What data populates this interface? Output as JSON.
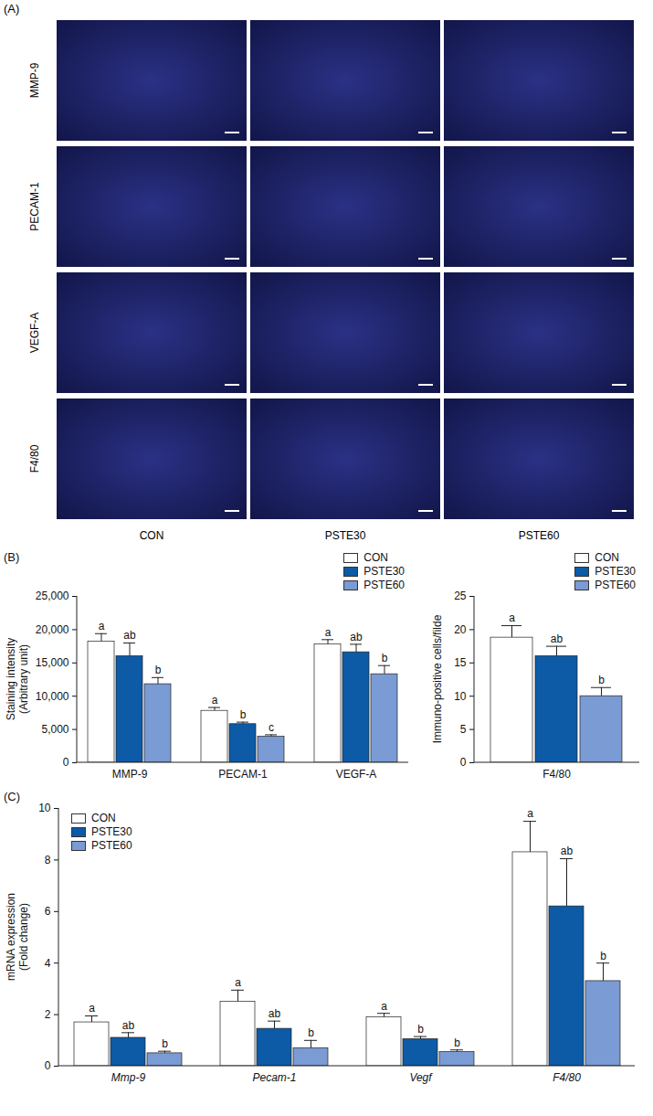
{
  "images": {
    "label": "(A)",
    "rows": [
      "MMP-9",
      "PECAM-1",
      "VEGF-A",
      "F4/80"
    ],
    "columns": [
      "CON",
      "PSTE30",
      "PSTE60"
    ]
  },
  "chart_data": [
    {
      "type": "bar",
      "panel": "(B)",
      "y_label": "Staining intensity\n(Arbitrary unit)",
      "categories": [
        "MMP-9",
        "PECAM-1",
        "VEGF-A"
      ],
      "series": [
        {
          "name": "CON",
          "color": "#ffffff",
          "values": [
            18200,
            7800,
            17800
          ],
          "errors": [
            1200,
            500,
            700
          ],
          "letters": [
            "a",
            "a",
            "a"
          ]
        },
        {
          "name": "PSTE30",
          "color": "#0d5aa7",
          "values": [
            16000,
            5800,
            16600
          ],
          "errors": [
            2000,
            300,
            1200
          ],
          "letters": [
            "ab",
            "b",
            "ab"
          ]
        },
        {
          "name": "PSTE60",
          "color": "#7a9bd3",
          "values": [
            11800,
            3900,
            13300
          ],
          "errors": [
            1000,
            300,
            1300
          ],
          "letters": [
            "b",
            "c",
            "b"
          ]
        }
      ],
      "ylim": [
        0,
        25000
      ],
      "yticks": [
        0,
        {
          "value": 5000,
          "label": "5,000"
        },
        {
          "value": 10000,
          "label": "10,000"
        },
        {
          "value": 15000,
          "label": "15,000"
        },
        {
          "value": 20000,
          "label": "20,000"
        },
        {
          "value": 25000,
          "label": "25,000"
        }
      ],
      "legend": "top-right"
    },
    {
      "type": "bar",
      "y_label": "Immuno-positive cells/filde",
      "categories": [
        "F4/80"
      ],
      "series": [
        {
          "name": "CON",
          "color": "#ffffff",
          "values": [
            18.8
          ],
          "errors": [
            1.8
          ],
          "letters": [
            "a"
          ]
        },
        {
          "name": "PSTE30",
          "color": "#0d5aa7",
          "values": [
            16
          ],
          "errors": [
            1.5
          ],
          "letters": [
            "ab"
          ]
        },
        {
          "name": "PSTE60",
          "color": "#7a9bd3",
          "values": [
            10
          ],
          "errors": [
            1.3
          ],
          "letters": [
            "b"
          ]
        }
      ],
      "ylim": [
        0,
        25
      ],
      "yticks": [
        0,
        5,
        10,
        15,
        20,
        25
      ],
      "legend": "top-right"
    },
    {
      "type": "bar",
      "panel": "(C)",
      "y_label": "mRNA expression\n(Fold change)",
      "categories": [
        "Mmp-9",
        "Pecam-1",
        "Vegf",
        "F4/80"
      ],
      "series": [
        {
          "name": "CON",
          "color": "#ffffff",
          "values": [
            1.7,
            2.5,
            1.9,
            8.3
          ],
          "errors": [
            0.25,
            0.45,
            0.15,
            1.2
          ],
          "letters": [
            "a",
            "a",
            "a",
            "a"
          ]
        },
        {
          "name": "PSTE30",
          "color": "#0d5aa7",
          "values": [
            1.1,
            1.45,
            1.05,
            6.2
          ],
          "errors": [
            0.2,
            0.3,
            0.1,
            1.85
          ],
          "letters": [
            "ab",
            "ab",
            "b",
            "ab"
          ]
        },
        {
          "name": "PSTE60",
          "color": "#7a9bd3",
          "values": [
            0.5,
            0.7,
            0.55,
            3.3
          ],
          "errors": [
            0.08,
            0.3,
            0.08,
            0.7
          ],
          "letters": [
            "b",
            "b",
            "b",
            "b"
          ]
        }
      ],
      "ylim": [
        0,
        10
      ],
      "yticks": [
        0,
        2,
        4,
        6,
        8,
        10
      ],
      "legend": "top-left"
    }
  ]
}
